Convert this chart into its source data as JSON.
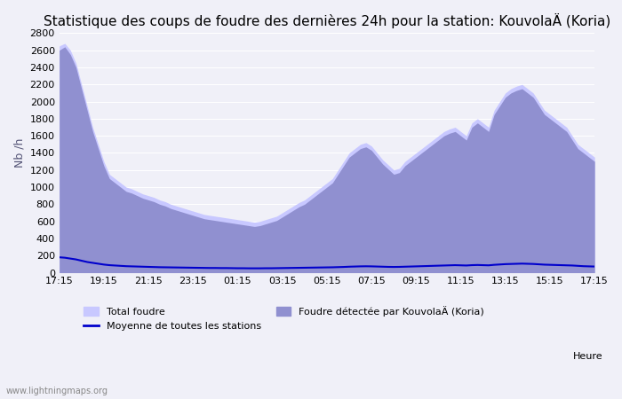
{
  "title": "Statistique des coups de foudre des dernières 24h pour la station: KouvolaÄ (Koria)",
  "ylabel": "Nb /h",
  "xlabel_right": "Heure",
  "xtick_labels": [
    "17:15",
    "19:15",
    "21:15",
    "23:15",
    "01:15",
    "03:15",
    "05:15",
    "07:15",
    "09:15",
    "11:15",
    "13:15",
    "15:15",
    "17:15"
  ],
  "ylim": [
    0,
    2800
  ],
  "yticks": [
    0,
    200,
    400,
    600,
    800,
    1000,
    1200,
    1400,
    1600,
    1800,
    2000,
    2200,
    2400,
    2600,
    2800
  ],
  "total_foudre_color": "#c8c8ff",
  "total_foudre_edge": "#b0b0e0",
  "local_foudre_color": "#9090d0",
  "local_foudre_edge": "#7070b0",
  "moyenne_color": "#0000cc",
  "background_color": "#f0f0f8",
  "watermark": "www.lightningmaps.org",
  "legend_total": "Total foudre",
  "legend_moyenne": "Moyenne de toutes les stations",
  "legend_local": "Foudre détectée par KouvolaÄ (Koria)",
  "title_fontsize": 11,
  "n_points": 97,
  "total_foudre_values": [
    2650,
    2680,
    2600,
    2450,
    2200,
    1950,
    1700,
    1500,
    1300,
    1150,
    1100,
    1050,
    1000,
    980,
    950,
    920,
    900,
    880,
    850,
    830,
    800,
    780,
    760,
    740,
    720,
    700,
    680,
    670,
    660,
    650,
    640,
    630,
    620,
    610,
    600,
    590,
    600,
    620,
    640,
    660,
    700,
    740,
    780,
    820,
    850,
    900,
    950,
    1000,
    1050,
    1100,
    1200,
    1300,
    1400,
    1450,
    1500,
    1520,
    1480,
    1400,
    1320,
    1260,
    1200,
    1220,
    1300,
    1350,
    1400,
    1450,
    1500,
    1550,
    1600,
    1650,
    1680,
    1700,
    1650,
    1600,
    1750,
    1800,
    1750,
    1700,
    1900,
    2000,
    2100,
    2150,
    2180,
    2200,
    2150,
    2100,
    2000,
    1900,
    1850,
    1800,
    1750,
    1700,
    1600,
    1500,
    1450,
    1400,
    1350
  ],
  "local_foudre_values": [
    2600,
    2640,
    2550,
    2400,
    2150,
    1900,
    1650,
    1450,
    1250,
    1100,
    1050,
    1000,
    950,
    930,
    900,
    870,
    850,
    830,
    800,
    780,
    750,
    730,
    710,
    690,
    670,
    650,
    630,
    620,
    610,
    600,
    590,
    580,
    570,
    560,
    550,
    540,
    550,
    570,
    590,
    610,
    650,
    690,
    730,
    770,
    800,
    850,
    900,
    950,
    1000,
    1050,
    1150,
    1250,
    1350,
    1400,
    1450,
    1470,
    1430,
    1350,
    1270,
    1210,
    1150,
    1170,
    1250,
    1300,
    1350,
    1400,
    1450,
    1500,
    1550,
    1600,
    1630,
    1650,
    1600,
    1550,
    1700,
    1750,
    1700,
    1650,
    1850,
    1950,
    2050,
    2100,
    2130,
    2150,
    2100,
    2050,
    1950,
    1850,
    1800,
    1750,
    1700,
    1650,
    1550,
    1450,
    1400,
    1350,
    1300
  ],
  "moyenne_values": [
    180,
    175,
    165,
    155,
    140,
    125,
    115,
    105,
    95,
    88,
    84,
    80,
    76,
    74,
    72,
    70,
    68,
    66,
    64,
    63,
    62,
    61,
    60,
    59,
    58,
    57,
    56,
    55,
    55,
    54,
    54,
    53,
    52,
    52,
    51,
    51,
    51,
    52,
    52,
    53,
    54,
    55,
    56,
    57,
    58,
    59,
    60,
    61,
    62,
    63,
    65,
    67,
    70,
    72,
    74,
    75,
    74,
    72,
    70,
    68,
    67,
    68,
    70,
    72,
    74,
    76,
    78,
    80,
    82,
    84,
    86,
    88,
    86,
    84,
    88,
    90,
    88,
    86,
    92,
    96,
    100,
    102,
    104,
    106,
    104,
    102,
    98,
    94,
    92,
    90,
    88,
    86,
    84,
    80,
    76,
    74,
    72
  ]
}
